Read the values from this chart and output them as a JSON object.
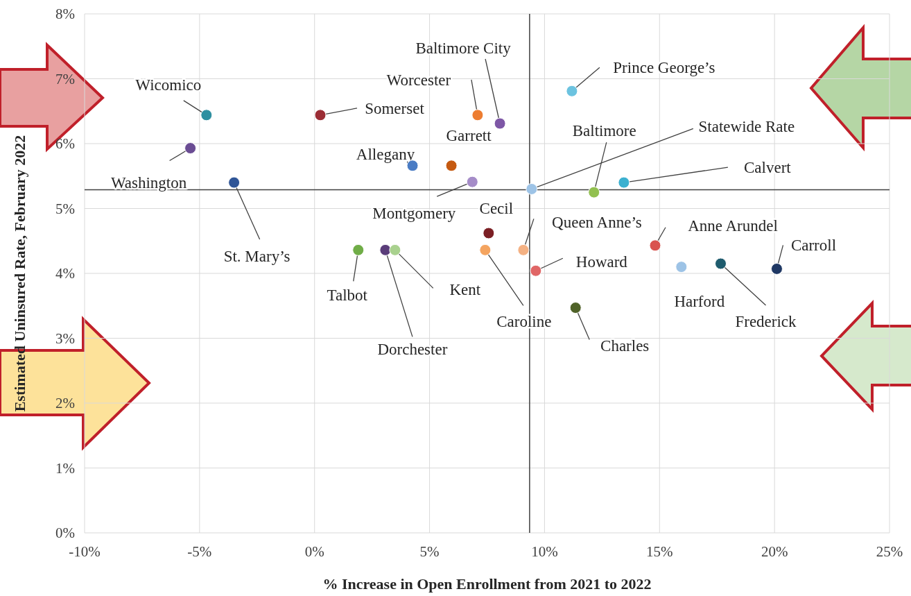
{
  "chart_data": {
    "type": "scatter",
    "xlabel": "% Increase in Open Enrollment from 2021 to 2022",
    "ylabel": "Estimated Uninsured Rate, February 2022",
    "x": [
      -4.7,
      0.25,
      -5.4,
      -3.5,
      4.26,
      5.95,
      7.09,
      8.06,
      6.86,
      11.19,
      9.44,
      12.15,
      13.45,
      7.57,
      9.08,
      14.81,
      9.62,
      7.42,
      1.9,
      3.08,
      3.5,
      11.35,
      15.95,
      17.66,
      20.1
    ],
    "values": [
      6.44,
      6.44,
      5.93,
      5.4,
      5.66,
      5.66,
      6.44,
      6.31,
      5.41,
      6.81,
      5.3,
      5.25,
      5.4,
      4.62,
      4.36,
      4.43,
      4.04,
      4.36,
      4.36,
      4.36,
      4.36,
      3.47,
      4.1,
      4.15,
      4.07
    ],
    "colors": [
      "#2e8fa0",
      "#9b2d35",
      "#6a4c93",
      "#2f5597",
      "#4a7cc4",
      "#c55a11",
      "#ed7d31",
      "#7e57a6",
      "#a58cc8",
      "#6cc3e0",
      "#9dc3e6",
      "#92c050",
      "#3bb0d0",
      "#7b1f24",
      "#f4b183",
      "#d9534f",
      "#e06666",
      "#f4a460",
      "#70ad47",
      "#5a3d7a",
      "#a9d18e",
      "#4f6228",
      "#9dc3e6",
      "#1f5c6e",
      "#1f3864"
    ],
    "marker": "circle",
    "xlim": [
      -10,
      25
    ],
    "xticks": [
      {
        "value": -10,
        "label": "-10%"
      },
      {
        "value": -5,
        "label": "-5%"
      },
      {
        "value": 0,
        "label": "0%"
      },
      {
        "value": 5,
        "label": "5%"
      },
      {
        "value": 10,
        "label": "10%"
      },
      {
        "value": 15,
        "label": "15%"
      },
      {
        "value": 20,
        "label": "20%"
      },
      {
        "value": 25,
        "label": "25%"
      }
    ],
    "ylim": [
      0,
      8
    ],
    "yticks": [
      {
        "value": 0,
        "label": "0%"
      },
      {
        "value": 1,
        "label": "1%"
      },
      {
        "value": 2,
        "label": "2%"
      },
      {
        "value": 3,
        "label": "3%"
      },
      {
        "value": 4,
        "label": "4%"
      },
      {
        "value": 5,
        "label": "5%"
      },
      {
        "value": 6,
        "label": "6%"
      },
      {
        "value": 7,
        "label": "7%"
      },
      {
        "value": 8,
        "label": "8%"
      }
    ],
    "grid": true,
    "ref_lines": [
      {
        "axis": "y",
        "value": 5.29,
        "color": "#404040"
      },
      {
        "axis": "x",
        "value": 9.35,
        "color": "#404040"
      }
    ],
    "annotations": [
      {
        "text": "Wicomico",
        "x": -4.7,
        "y": 6.44
      },
      {
        "text": "Somerset",
        "x": 0.25,
        "y": 6.44
      },
      {
        "text": "Washington",
        "x": -5.4,
        "y": 5.93
      },
      {
        "text": "St. Mary’s",
        "x": -3.5,
        "y": 5.4
      },
      {
        "text": "Allegany",
        "x": 4.26,
        "y": 5.66
      },
      {
        "text": "Garrett",
        "x": 5.95,
        "y": 5.66
      },
      {
        "text": "Worcester",
        "x": 7.09,
        "y": 6.44
      },
      {
        "text": "Baltimore City",
        "x": 8.06,
        "y": 6.31
      },
      {
        "text": "Montgomery",
        "x": 6.86,
        "y": 5.41
      },
      {
        "text": "Prince George’s",
        "x": 11.19,
        "y": 6.81
      },
      {
        "text": "Statewide Rate",
        "x": 9.44,
        "y": 5.3
      },
      {
        "text": "Baltimore",
        "x": 12.15,
        "y": 5.25
      },
      {
        "text": "Calvert",
        "x": 13.45,
        "y": 5.4
      },
      {
        "text": "Cecil",
        "x": 7.57,
        "y": 4.62
      },
      {
        "text": "Queen Anne’s",
        "x": 9.08,
        "y": 4.36
      },
      {
        "text": "Anne Arundel",
        "x": 14.81,
        "y": 4.43
      },
      {
        "text": "Howard",
        "x": 9.62,
        "y": 4.04
      },
      {
        "text": "Caroline",
        "x": 7.42,
        "y": 4.36
      },
      {
        "text": "Talbot",
        "x": 1.9,
        "y": 4.36
      },
      {
        "text": "Dorchester",
        "x": 3.08,
        "y": 4.36
      },
      {
        "text": "Kent",
        "x": 3.5,
        "y": 4.36
      },
      {
        "text": "Charles",
        "x": 11.35,
        "y": 3.47
      },
      {
        "text": "Harford",
        "x": 15.95,
        "y": 4.1
      },
      {
        "text": "Frederick",
        "x": 17.66,
        "y": 4.15
      },
      {
        "text": "Carroll",
        "x": 20.1,
        "y": 4.07
      }
    ]
  }
}
